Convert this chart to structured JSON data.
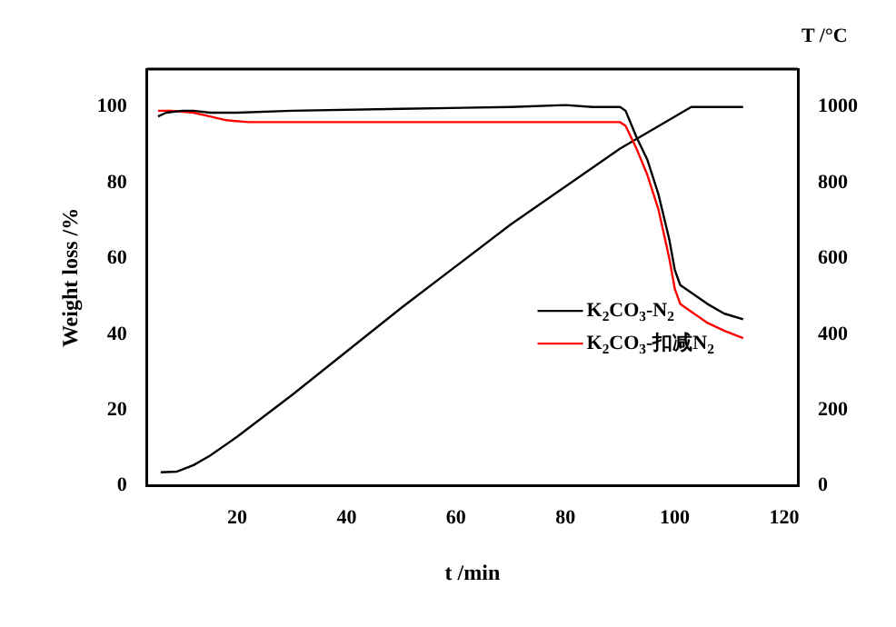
{
  "chart_data": {
    "type": "line",
    "xlabel": "t /min",
    "ylabel": "Weight loss /%",
    "y2label": "T /°C",
    "xlim": [
      3.5,
      122.5
    ],
    "xticks": [
      20,
      40,
      60,
      80,
      100,
      120
    ],
    "ylim": [
      0,
      110
    ],
    "yticks": [
      0,
      20,
      40,
      60,
      80,
      100
    ],
    "y2lim": [
      0,
      1100
    ],
    "y2ticks": [
      0,
      200,
      400,
      600,
      800,
      1000
    ],
    "grid": false,
    "legend": "right",
    "marker": "none",
    "line_style": "solid",
    "series": [
      {
        "name": "K$_{2}$CO$_{3}$-N$_{2}$",
        "color": "#000000",
        "x": [
          5.5,
          7,
          10,
          12,
          15,
          20,
          30,
          50,
          70,
          80,
          85,
          90,
          91,
          93,
          95,
          97,
          99,
          100,
          101,
          103,
          106,
          109,
          112.5
        ],
        "values": [
          97.5,
          98.5,
          99,
          99,
          98.5,
          98.5,
          99,
          99.5,
          100,
          100.5,
          100,
          100,
          99,
          92,
          86,
          77,
          65,
          57,
          53,
          51,
          48,
          45.5,
          44
        ]
      },
      {
        "name": "K$_{2}$CO$_{3}$-扣减N$_{2}$",
        "color": "#ff0000",
        "x": [
          5.5,
          8,
          12,
          15,
          18,
          22,
          40,
          70,
          90,
          91,
          93,
          95,
          97,
          99,
          100,
          101,
          103,
          106,
          109,
          112.5
        ],
        "values": [
          99,
          99,
          98.5,
          97.5,
          96.5,
          96,
          96,
          96,
          96,
          95,
          89,
          82,
          73,
          60,
          52,
          48,
          46,
          43,
          41,
          39
        ]
      },
      {
        "color": "#000000",
        "axis": "y2",
        "x": [
          6,
          9,
          12,
          15,
          20,
          30,
          40,
          50,
          60,
          70,
          80,
          90,
          103,
          112.5
        ],
        "values": [
          36,
          38,
          55,
          80,
          130,
          240,
          355,
          470,
          580,
          690,
          790,
          890,
          1000,
          1000
        ]
      }
    ]
  }
}
